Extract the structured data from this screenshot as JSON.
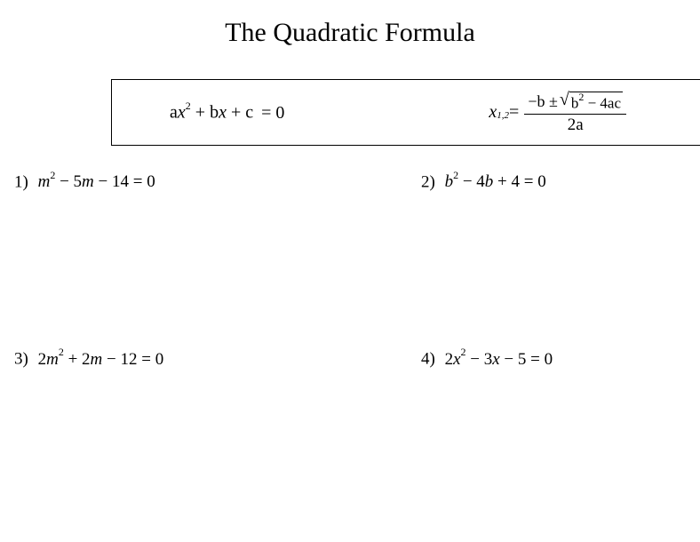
{
  "title": "The Quadratic Formula",
  "formula": {
    "standard_a": "a",
    "standard_x": "x",
    "standard_sup": "2",
    "standard_plus": " + ",
    "standard_b": "b",
    "standard_x2": "x",
    "standard_plus2": " + ",
    "standard_c": "c",
    "standard_eq": " = 0",
    "x_var": "x",
    "x_sub": "1,2",
    "equals": " = ",
    "num_neg_b": "−b ± ",
    "sqrt_b": "b",
    "sqrt_sup": "2",
    "sqrt_minus": " − 4ac",
    "den": "2a"
  },
  "problems": {
    "p1": {
      "number": "1)",
      "var1": "m",
      "sup1": "2",
      "mid": " − 5",
      "var2": "m",
      "end": " − 14 = 0"
    },
    "p2": {
      "number": "2)",
      "var1": "b",
      "sup1": "2",
      "mid": " − 4",
      "var2": "b",
      "end": " + 4 = 0"
    },
    "p3": {
      "number": "3)",
      "pre": "2",
      "var1": "m",
      "sup1": "2",
      "mid": " + 2",
      "var2": "m",
      "end": " − 12 = 0"
    },
    "p4": {
      "number": "4)",
      "pre": "2",
      "var1": "x",
      "sup1": "2",
      "mid": " − 3",
      "var2": "x",
      "end": " − 5 = 0"
    }
  }
}
